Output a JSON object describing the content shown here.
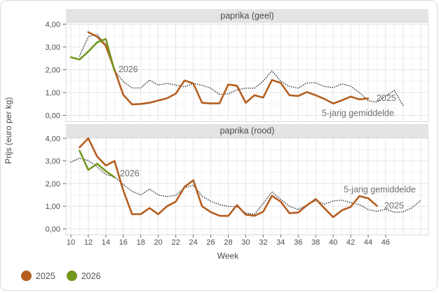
{
  "y_axis": {
    "title": "Prijs (euro per kg)",
    "tick_values": [
      0,
      1,
      2,
      3,
      4
    ],
    "tick_labels": [
      "0,00",
      "1,00",
      "2,00",
      "3,00",
      "4,00"
    ]
  },
  "x_axis": {
    "title": "Week",
    "tick_weeks": [
      10,
      12,
      14,
      16,
      18,
      20,
      22,
      24,
      26,
      28,
      30,
      32,
      34,
      36,
      38,
      40,
      42,
      44,
      46
    ],
    "range": [
      9.4,
      50.9
    ]
  },
  "legend": [
    {
      "label": "2025",
      "color": "#b55e1f"
    },
    {
      "label": "2026",
      "color": "#73981e"
    }
  ],
  "chart_data": [
    {
      "type": "line",
      "facet": "paprika (geel)",
      "x_unit": "week",
      "y_unit": "euro per kg",
      "ylim": [
        0,
        4
      ],
      "series": [
        {
          "name": "5-jarig gemiddelde",
          "style": "dotted",
          "color": "#1f1f1f",
          "points": [
            [
              11,
              2.6
            ],
            [
              12,
              3.45
            ],
            [
              13,
              3.55
            ],
            [
              14,
              3.1
            ],
            [
              15,
              1.95
            ],
            [
              16,
              1.48
            ],
            [
              17,
              1.2
            ],
            [
              18,
              1.2
            ],
            [
              19,
              1.55
            ],
            [
              20,
              1.33
            ],
            [
              21,
              1.4
            ],
            [
              22,
              1.33
            ],
            [
              23,
              1.25
            ],
            [
              24,
              1.4
            ],
            [
              25,
              1.32
            ],
            [
              26,
              1.19
            ],
            [
              27,
              0.92
            ],
            [
              28,
              0.94
            ],
            [
              29,
              1.12
            ],
            [
              30,
              1.19
            ],
            [
              31,
              1.19
            ],
            [
              32,
              1.5
            ],
            [
              33,
              1.95
            ],
            [
              34,
              1.5
            ],
            [
              35,
              1.27
            ],
            [
              36,
              1.19
            ],
            [
              37,
              1.42
            ],
            [
              38,
              1.43
            ],
            [
              39,
              1.26
            ],
            [
              40,
              1.22
            ],
            [
              41,
              1.38
            ],
            [
              42,
              1.28
            ],
            [
              43,
              1.0
            ],
            [
              44,
              0.64
            ],
            [
              45,
              0.58
            ],
            [
              46,
              0.85
            ],
            [
              47,
              1.1
            ],
            [
              48,
              0.42
            ]
          ]
        },
        {
          "name": "2025",
          "style": "solid",
          "color": "#b55e1f",
          "points": [
            [
              12,
              3.65
            ],
            [
              13,
              3.45
            ],
            [
              14,
              3.05
            ],
            [
              15,
              2.0
            ],
            [
              16,
              0.9
            ],
            [
              17,
              0.48
            ],
            [
              18,
              0.5
            ],
            [
              19,
              0.55
            ],
            [
              20,
              0.65
            ],
            [
              21,
              0.75
            ],
            [
              22,
              0.95
            ],
            [
              23,
              1.53
            ],
            [
              24,
              1.4
            ],
            [
              25,
              0.55
            ],
            [
              26,
              0.52
            ],
            [
              27,
              0.53
            ],
            [
              28,
              1.35
            ],
            [
              29,
              1.3
            ],
            [
              30,
              0.55
            ],
            [
              31,
              0.88
            ],
            [
              32,
              0.78
            ],
            [
              33,
              1.55
            ],
            [
              34,
              1.42
            ],
            [
              35,
              0.88
            ],
            [
              36,
              0.85
            ],
            [
              37,
              1.02
            ],
            [
              38,
              0.88
            ],
            [
              39,
              0.72
            ],
            [
              40,
              0.52
            ],
            [
              41,
              0.66
            ],
            [
              42,
              0.82
            ],
            [
              43,
              0.7
            ],
            [
              44,
              0.74
            ]
          ]
        },
        {
          "name": "2026",
          "style": "solid",
          "color": "#73981e",
          "points": [
            [
              10,
              2.55
            ],
            [
              11,
              2.45
            ],
            [
              12,
              2.8
            ],
            [
              13,
              3.2
            ],
            [
              14,
              3.35
            ],
            [
              15,
              1.95
            ]
          ]
        }
      ],
      "annotations": [
        {
          "label": "2026",
          "week": 15.45,
          "value": 1.892
        },
        {
          "label": "2025",
          "week": 44.96,
          "value": 0.631
        },
        {
          "label": "5-jarig gemiddelde",
          "week": 38.71,
          "value": -0.031
        }
      ]
    },
    {
      "type": "line",
      "facet": "paprika (rood)",
      "x_unit": "week",
      "y_unit": "euro per kg",
      "ylim": [
        0,
        4
      ],
      "series": [
        {
          "name": "5-jarig gemiddelde",
          "style": "dotted",
          "color": "#1f1f1f",
          "points": [
            [
              10,
              2.95
            ],
            [
              11,
              3.12
            ],
            [
              12,
              3.02
            ],
            [
              13,
              2.75
            ],
            [
              14,
              2.4
            ],
            [
              15,
              2.3
            ],
            [
              16,
              1.96
            ],
            [
              17,
              1.66
            ],
            [
              18,
              1.5
            ],
            [
              19,
              1.76
            ],
            [
              20,
              1.5
            ],
            [
              21,
              1.42
            ],
            [
              22,
              1.48
            ],
            [
              23,
              1.81
            ],
            [
              24,
              1.93
            ],
            [
              25,
              1.45
            ],
            [
              26,
              1.22
            ],
            [
              27,
              1.07
            ],
            [
              28,
              0.99
            ],
            [
              29,
              0.98
            ],
            [
              30,
              0.7
            ],
            [
              31,
              0.64
            ],
            [
              32,
              1.12
            ],
            [
              33,
              1.63
            ],
            [
              34,
              1.3
            ],
            [
              35,
              1.0
            ],
            [
              36,
              0.85
            ],
            [
              37,
              1.05
            ],
            [
              38,
              1.25
            ],
            [
              39,
              1.09
            ],
            [
              40,
              1.23
            ],
            [
              41,
              1.27
            ],
            [
              42,
              1.16
            ],
            [
              43,
              1.07
            ],
            [
              44,
              0.85
            ],
            [
              45,
              0.77
            ],
            [
              46,
              0.87
            ],
            [
              47,
              0.73
            ],
            [
              48,
              0.75
            ],
            [
              49,
              0.93
            ],
            [
              50,
              1.25
            ]
          ]
        },
        {
          "name": "2025",
          "style": "solid",
          "color": "#b55e1f",
          "points": [
            [
              11,
              3.6
            ],
            [
              12,
              4.0
            ],
            [
              13,
              3.2
            ],
            [
              14,
              2.8
            ],
            [
              15,
              3.0
            ],
            [
              16,
              1.7
            ],
            [
              17,
              0.65
            ],
            [
              18,
              0.65
            ],
            [
              19,
              0.92
            ],
            [
              20,
              0.65
            ],
            [
              21,
              1.0
            ],
            [
              22,
              1.2
            ],
            [
              23,
              1.85
            ],
            [
              24,
              2.15
            ],
            [
              25,
              1.0
            ],
            [
              26,
              0.74
            ],
            [
              27,
              0.58
            ],
            [
              28,
              0.57
            ],
            [
              29,
              1.05
            ],
            [
              30,
              0.63
            ],
            [
              31,
              0.58
            ],
            [
              32,
              0.76
            ],
            [
              33,
              1.46
            ],
            [
              34,
              1.2
            ],
            [
              35,
              0.69
            ],
            [
              36,
              0.72
            ],
            [
              37,
              1.04
            ],
            [
              38,
              1.32
            ],
            [
              39,
              0.91
            ],
            [
              40,
              0.52
            ],
            [
              41,
              0.82
            ],
            [
              42,
              0.97
            ],
            [
              43,
              1.45
            ],
            [
              44,
              1.35
            ],
            [
              45,
              1.02
            ]
          ]
        },
        {
          "name": "2026",
          "style": "solid",
          "color": "#73981e",
          "points": [
            [
              11,
              3.45
            ],
            [
              12,
              2.6
            ],
            [
              13,
              2.88
            ],
            [
              14,
              2.55
            ],
            [
              15,
              2.28
            ]
          ]
        }
      ],
      "annotations": [
        {
          "label": "2026",
          "week": 15.61,
          "value": 2.322
        },
        {
          "label": "5-jarig gemiddelde",
          "week": 41.2,
          "value": 1.61
        },
        {
          "label": "2025",
          "week": 45.85,
          "value": 0.898
        }
      ]
    }
  ]
}
